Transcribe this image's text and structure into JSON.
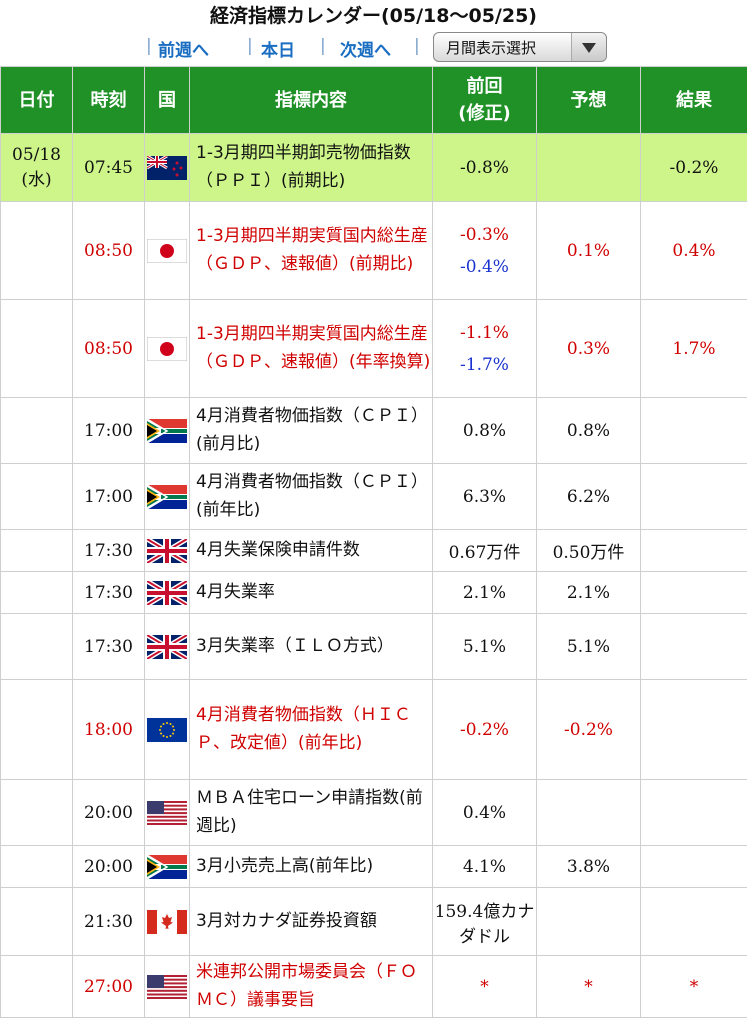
{
  "header": {
    "title": "経済指標カレンダー(05/18〜05/25)",
    "nav_prev": "前週へ",
    "nav_today": "本日",
    "nav_next": "次週へ",
    "month_select": "月間表示選択",
    "separator": "|"
  },
  "table": {
    "columns": [
      "日付",
      "時刻",
      "国",
      "指標内容",
      "前回\n(修正)",
      "予想",
      "結果"
    ],
    "rows": [
      {
        "date": "05/18\n(水)",
        "time": "07:45",
        "flag": "new-zealand-flag",
        "content": "1-3月期四半期卸売物価指数（ＰＰＩ）(前期比)",
        "prev": "-0.8%",
        "revised": "",
        "forecast": "",
        "result": "-0.2%",
        "highlight": true,
        "important": false
      },
      {
        "date": "",
        "time": "08:50",
        "flag": "japan-flag",
        "content": "1-3月期四半期実質国内総生産（ＧＤＰ、速報値）(前期比)",
        "prev": "-0.3%",
        "revised": "-0.4%",
        "forecast": "0.1%",
        "result": "0.4%",
        "highlight": false,
        "important": true
      },
      {
        "date": "",
        "time": "08:50",
        "flag": "japan-flag",
        "content": "1-3月期四半期実質国内総生産（ＧＤＰ、速報値）(年率換算)",
        "prev": "-1.1%",
        "revised": "-1.7%",
        "forecast": "0.3%",
        "result": "1.7%",
        "highlight": false,
        "important": true
      },
      {
        "date": "",
        "time": "17:00",
        "flag": "south-africa-flag",
        "content": "4月消費者物価指数（ＣＰＩ）(前月比)",
        "prev": "0.8%",
        "revised": "",
        "forecast": "0.8%",
        "result": "",
        "highlight": false,
        "important": false
      },
      {
        "date": "",
        "time": "17:00",
        "flag": "south-africa-flag",
        "content": "4月消費者物価指数（ＣＰＩ）(前年比)",
        "prev": "6.3%",
        "revised": "",
        "forecast": "6.2%",
        "result": "",
        "highlight": false,
        "important": false
      },
      {
        "date": "",
        "time": "17:30",
        "flag": "uk-flag",
        "content": "4月失業保険申請件数",
        "prev": "0.67万件",
        "revised": "",
        "forecast": "0.50万件",
        "result": "",
        "highlight": false,
        "important": false
      },
      {
        "date": "",
        "time": "17:30",
        "flag": "uk-flag",
        "content": "4月失業率",
        "prev": "2.1%",
        "revised": "",
        "forecast": "2.1%",
        "result": "",
        "highlight": false,
        "important": false
      },
      {
        "date": "",
        "time": "17:30",
        "flag": "uk-flag",
        "content": "3月失業率（ＩＬＯ方式）",
        "prev": "5.1%",
        "revised": "",
        "forecast": "5.1%",
        "result": "",
        "highlight": false,
        "important": false
      },
      {
        "date": "",
        "time": "18:00",
        "flag": "eu-flag",
        "content": "4月消費者物価指数（ＨＩＣＰ、改定値）(前年比)",
        "prev": "-0.2%",
        "revised": "",
        "forecast": "-0.2%",
        "result": "",
        "highlight": false,
        "important": true
      },
      {
        "date": "",
        "time": "20:00",
        "flag": "us-flag",
        "content": "ＭＢＡ住宅ローン申請指数(前週比)",
        "prev": "0.4%",
        "revised": "",
        "forecast": "",
        "result": "",
        "highlight": false,
        "important": false
      },
      {
        "date": "",
        "time": "20:00",
        "flag": "south-africa-flag",
        "content": "3月小売売上高(前年比)",
        "prev": "4.1%",
        "revised": "",
        "forecast": "3.8%",
        "result": "",
        "highlight": false,
        "important": false
      },
      {
        "date": "",
        "time": "21:30",
        "flag": "canada-flag",
        "content": "3月対カナダ証券投資額",
        "prev": "159.4億カナダドル",
        "revised": "",
        "forecast": "",
        "result": "",
        "highlight": false,
        "important": false
      },
      {
        "date": "",
        "time": "27:00",
        "flag": "us-flag",
        "content": "米連邦公開市場委員会（ＦＯＭＣ）議事要旨",
        "prev": "*",
        "revised": "",
        "forecast": "*",
        "result": "*",
        "highlight": false,
        "important": true
      }
    ]
  },
  "colors": {
    "header_green": "#1f9127",
    "highlight_row": "#cdf58a",
    "important_red": "#d00000",
    "revised_blue": "#1a33d0",
    "nav_link": "#1a6ec2"
  }
}
